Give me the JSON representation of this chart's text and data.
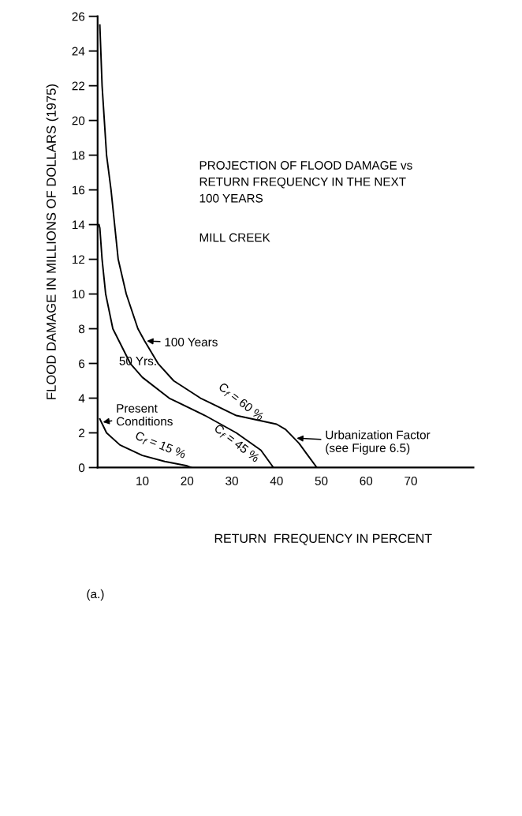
{
  "chart_data": {
    "type": "line",
    "xlabel": "RETURN  FREQUENCY IN PERCENT",
    "ylabel": "FLOOD DAMAGE IN MILLIONS OF DOLLARS (1975)",
    "xlim": [
      0,
      84
    ],
    "ylim": [
      0,
      26
    ],
    "xticks": [
      10,
      20,
      30,
      40,
      50,
      60,
      70
    ],
    "yticks": [
      0,
      2,
      4,
      6,
      8,
      10,
      12,
      14,
      16,
      18,
      20,
      22,
      24,
      26
    ],
    "grid": false,
    "legend": false,
    "marker": "none",
    "line_style": "solid",
    "series": [
      {
        "color": "#000000",
        "x": [
          0.5,
          1,
          2,
          3,
          4.6,
          6.4,
          9,
          10.5,
          13.5,
          17,
          23,
          31,
          40,
          42,
          45,
          47,
          49
        ],
        "values": [
          25.5,
          22,
          18,
          16,
          12,
          10,
          8,
          7.3,
          6,
          5,
          4,
          3,
          2.5,
          2.2,
          1.4,
          0.7,
          0
        ]
      },
      {
        "color": "#000000",
        "x": [
          0.3,
          0.5,
          1,
          1.8,
          3.4,
          7.3,
          10,
          16,
          24,
          31,
          36.5,
          39.3
        ],
        "values": [
          14,
          13.8,
          12,
          10,
          8,
          6,
          5.2,
          4,
          3,
          2,
          1,
          0
        ]
      },
      {
        "color": "#000000",
        "x": [
          0.5,
          2,
          5,
          10,
          15,
          20,
          21
        ],
        "values": [
          2.8,
          2,
          1.3,
          0.7,
          0.35,
          0.1,
          0
        ]
      }
    ],
    "annotations": [
      {
        "text": "100 Years",
        "x": 10.5,
        "y": 7.3
      },
      {
        "text": "50 Yrs.",
        "x": 10,
        "y": 5.2
      },
      {
        "text": "Present\nConditions",
        "x": 0.7,
        "y": 2.6
      },
      {
        "text": "C$_{f}$ = 15 %",
        "x": 14,
        "y": 0.5
      },
      {
        "text": "C$_{f}$ = 45 %",
        "x": 31,
        "y": 2
      },
      {
        "text": "C$_{f}$ = 60 %",
        "x": 31,
        "y": 3
      },
      {
        "text": "Urbanization Factor\n(see Figure 6.5)",
        "x": 44,
        "y": 1.7
      },
      "PROJECTION OF FLOOD DAMAGE vs\nRETURN FREQUENCY IN THE NEXT\n100 YEARS",
      "MILL CREEK",
      "(a.)"
    ]
  }
}
